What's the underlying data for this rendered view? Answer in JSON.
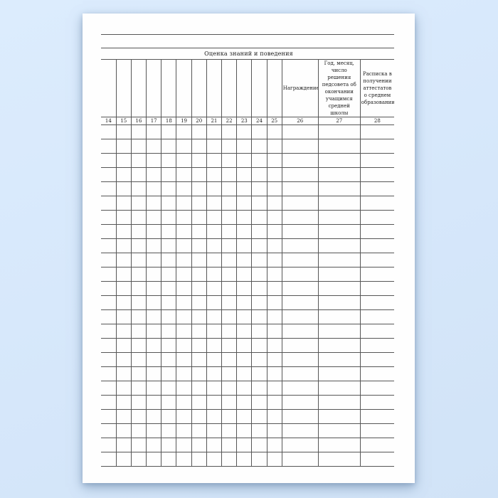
{
  "document": {
    "section_title": "Оценка знаний и поведения",
    "table": {
      "columns": [
        {
          "number": "14",
          "header": ""
        },
        {
          "number": "15",
          "header": ""
        },
        {
          "number": "16",
          "header": ""
        },
        {
          "number": "17",
          "header": ""
        },
        {
          "number": "18",
          "header": ""
        },
        {
          "number": "19",
          "header": ""
        },
        {
          "number": "20",
          "header": ""
        },
        {
          "number": "21",
          "header": ""
        },
        {
          "number": "22",
          "header": ""
        },
        {
          "number": "23",
          "header": ""
        },
        {
          "number": "24",
          "header": ""
        },
        {
          "number": "25",
          "header": ""
        },
        {
          "number": "26",
          "header": "Награждение"
        },
        {
          "number": "27",
          "header": "Год, месяц,\nчисло решения\nпедсовета об\nокончании\nучащимся\nсредней школы"
        },
        {
          "number": "28",
          "header": "Расписка в\nполучении\nаттестатов\nо среднем\nобразовании"
        }
      ],
      "empty_row_count": 24
    }
  }
}
